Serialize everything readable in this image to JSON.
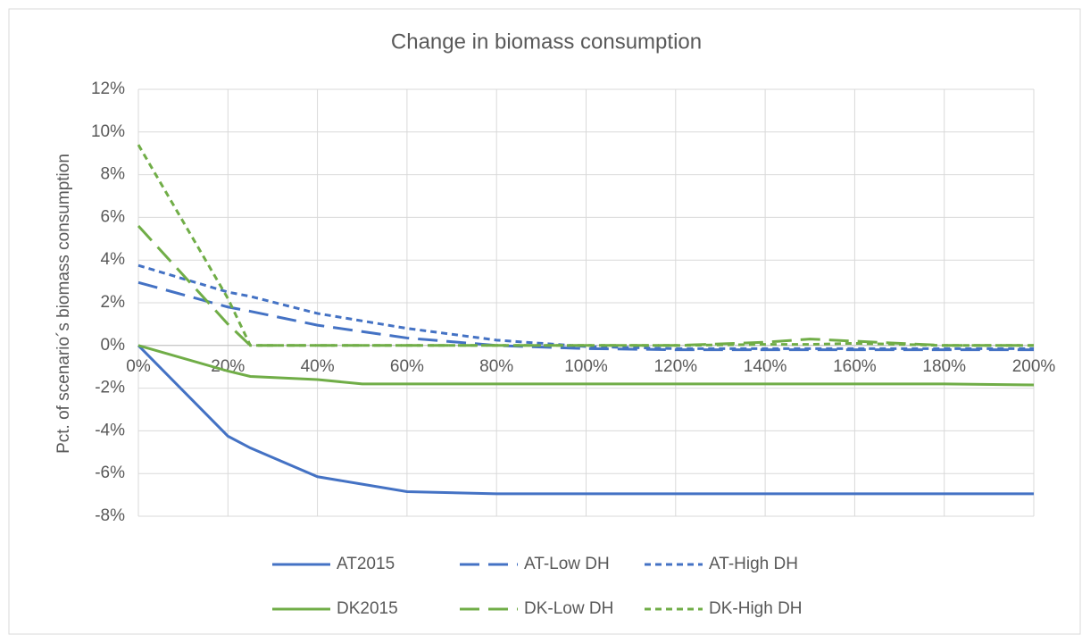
{
  "chart_data": {
    "type": "line",
    "title": "Change in biomass consumption",
    "y_label": "Pct. of scenario´s biomass consumption",
    "x": [
      0,
      20,
      25,
      40,
      50,
      60,
      80,
      100,
      120,
      140,
      150,
      160,
      180,
      200
    ],
    "series": [
      {
        "name": "AT2015",
        "color": "#4472c4",
        "style": "solid",
        "values": [
          0,
          -4.25,
          -4.8,
          -6.15,
          -6.5,
          -6.85,
          -6.95,
          -6.95,
          -6.95,
          -6.95,
          -6.95,
          -6.95,
          -6.95,
          -6.95
        ]
      },
      {
        "name": "AT-Low DH",
        "color": "#4472c4",
        "style": "dashed",
        "values": [
          2.95,
          1.8,
          1.6,
          0.95,
          0.65,
          0.35,
          0,
          -0.15,
          -0.2,
          -0.2,
          -0.2,
          -0.2,
          -0.2,
          -0.2
        ]
      },
      {
        "name": "AT-High DH",
        "color": "#4472c4",
        "style": "dotted",
        "values": [
          3.75,
          2.5,
          2.3,
          1.5,
          1.15,
          0.8,
          0.25,
          -0.05,
          -0.15,
          -0.15,
          -0.15,
          -0.15,
          -0.15,
          -0.15
        ]
      },
      {
        "name": "DK2015",
        "color": "#70ad47",
        "style": "solid",
        "values": [
          0,
          -1.2,
          -1.45,
          -1.6,
          -1.8,
          -1.8,
          -1.8,
          -1.8,
          -1.8,
          -1.8,
          -1.8,
          -1.8,
          -1.8,
          -1.85
        ]
      },
      {
        "name": "DK-Low DH",
        "color": "#70ad47",
        "style": "dashed",
        "values": [
          5.6,
          1.0,
          0,
          0,
          0,
          0,
          0,
          0,
          0,
          0.15,
          0.3,
          0.2,
          0,
          0
        ]
      },
      {
        "name": "DK-High DH",
        "color": "#70ad47",
        "style": "dotted",
        "values": [
          9.4,
          2.2,
          0,
          0,
          0,
          0,
          0,
          0,
          0,
          0.05,
          0.05,
          0.1,
          0,
          0
        ]
      }
    ],
    "xlim": [
      0,
      200
    ],
    "xticks": [
      {
        "value": 0,
        "label": "0%"
      },
      {
        "value": 20,
        "label": "20%"
      },
      {
        "value": 40,
        "label": "40%"
      },
      {
        "value": 60,
        "label": "60%"
      },
      {
        "value": 80,
        "label": "80%"
      },
      {
        "value": 100,
        "label": "100%"
      },
      {
        "value": 120,
        "label": "120%"
      },
      {
        "value": 140,
        "label": "140%"
      },
      {
        "value": 160,
        "label": "160%"
      },
      {
        "value": 180,
        "label": "180%"
      },
      {
        "value": 200,
        "label": "200%"
      }
    ],
    "ylim": [
      -8,
      12
    ],
    "yticks": [
      {
        "value": -8,
        "label": "-8%"
      },
      {
        "value": -6,
        "label": "-6%"
      },
      {
        "value": -4,
        "label": "-4%"
      },
      {
        "value": -2,
        "label": "-2%"
      },
      {
        "value": 0,
        "label": "0%"
      },
      {
        "value": 2,
        "label": "2%"
      },
      {
        "value": 4,
        "label": "4%"
      },
      {
        "value": 6,
        "label": "6%"
      },
      {
        "value": 8,
        "label": "8%"
      },
      {
        "value": 10,
        "label": "10%"
      },
      {
        "value": 12,
        "label": "12%"
      }
    ],
    "grid": true,
    "legend": "bottom"
  }
}
